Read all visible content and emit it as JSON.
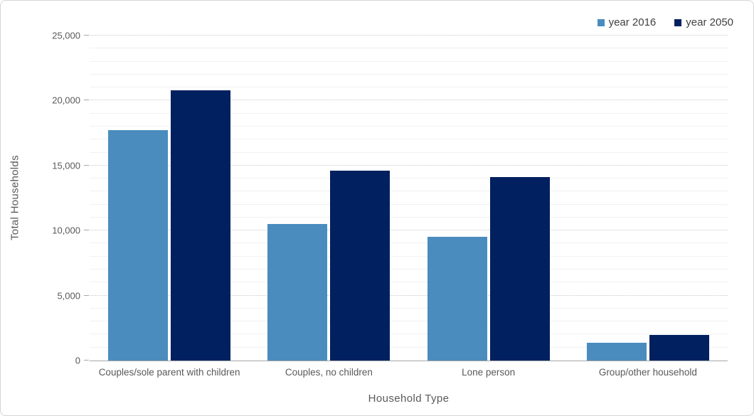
{
  "chart_data": {
    "type": "bar",
    "title": "",
    "xlabel": "Household Type",
    "ylabel": "Total Households",
    "categories": [
      "Couples/sole parent with children",
      "Couples, no children",
      "Lone person",
      "Group/other household"
    ],
    "series": [
      {
        "name": "year 2016",
        "color": "#4A8CBE",
        "values": [
          17700,
          10500,
          9500,
          1350
        ]
      },
      {
        "name": "year 2050",
        "color": "#002060",
        "values": [
          20800,
          14600,
          14100,
          1950
        ]
      }
    ],
    "ylim": [
      0,
      25000
    ],
    "major_step": 5000,
    "minor_step": 1000,
    "ytick_labels": [
      "0",
      "5,000",
      "10,000",
      "15,000",
      "20,000",
      "25,000"
    ],
    "grid": "horizontal: dotted major lines every 5000, faint minor lines every 1000",
    "legend_position": "top-right"
  }
}
